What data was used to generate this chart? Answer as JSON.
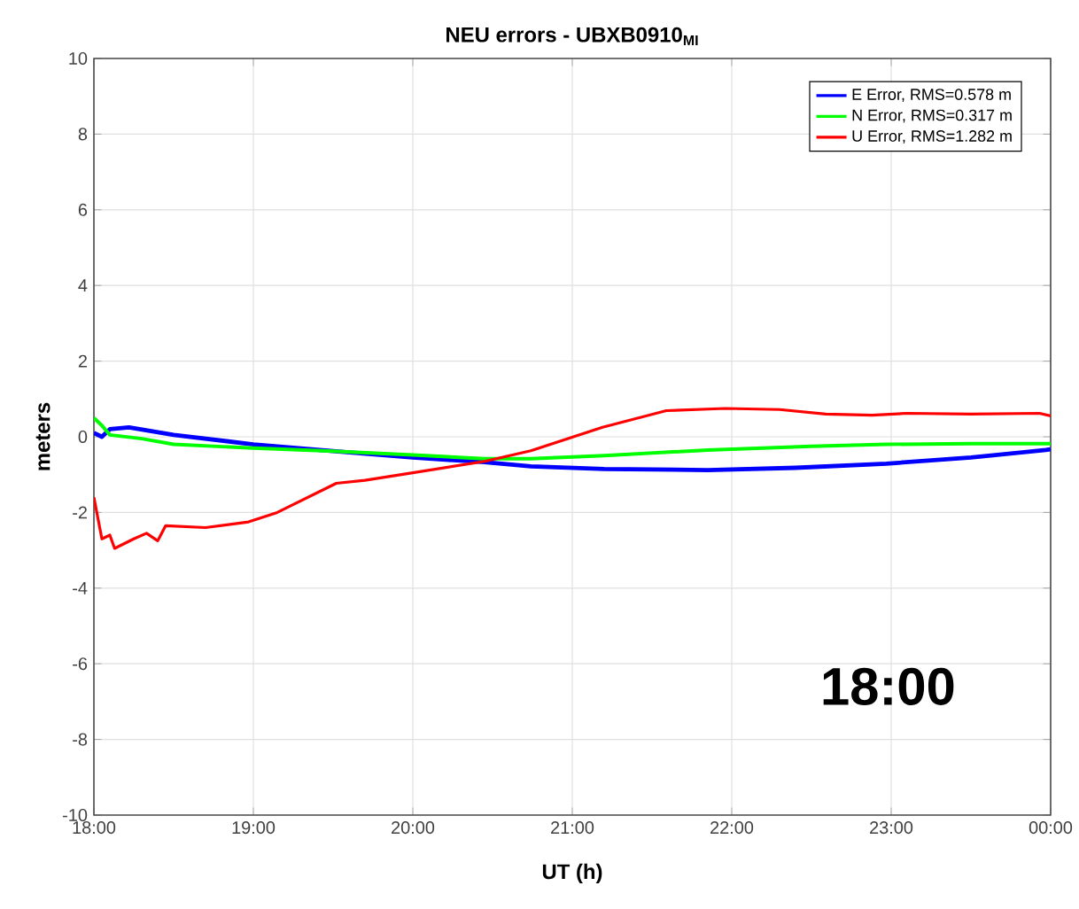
{
  "chart_data": {
    "type": "line",
    "title": "NEU errors - UBXB0910$_{MI}$",
    "xlabel": "UT (h)",
    "ylabel": "meters",
    "xlim": [
      18,
      24
    ],
    "xticks": [
      {
        "value": 18,
        "label": "18:00"
      },
      {
        "value": 19,
        "label": "19:00"
      },
      {
        "value": 20,
        "label": "20:00"
      },
      {
        "value": 21,
        "label": "21:00"
      },
      {
        "value": 22,
        "label": "22:00"
      },
      {
        "value": 23,
        "label": "23:00"
      },
      {
        "value": 24,
        "label": "00:00"
      }
    ],
    "ylim": [
      -10,
      10
    ],
    "yticks": [
      -10,
      -8,
      -6,
      -4,
      -2,
      0,
      2,
      4,
      6,
      8,
      10
    ],
    "grid": true,
    "legend": "top right",
    "marker": "none",
    "line_style": "solid",
    "annotations": [
      "18:00"
    ],
    "series": [
      {
        "name": "E Error, RMS=0.578 m",
        "color": "#0000ff",
        "x": [
          18.0,
          18.05,
          18.1,
          18.22,
          18.5,
          19.0,
          19.5,
          20.0,
          20.45,
          20.74,
          21.2,
          21.85,
          22.4,
          22.97,
          23.5,
          23.97,
          24.0
        ],
        "values": [
          0.1,
          0.0,
          0.2,
          0.25,
          0.05,
          -0.2,
          -0.38,
          -0.55,
          -0.67,
          -0.78,
          -0.85,
          -0.88,
          -0.82,
          -0.71,
          -0.55,
          -0.35,
          -0.33
        ]
      },
      {
        "name": "N Error, RMS=0.317 m",
        "color": "#00ff00",
        "x": [
          18.0,
          18.05,
          18.1,
          18.3,
          18.5,
          19.0,
          19.5,
          20.0,
          20.45,
          20.74,
          21.2,
          21.85,
          22.5,
          22.97,
          23.5,
          24.0
        ],
        "values": [
          0.5,
          0.3,
          0.05,
          -0.05,
          -0.2,
          -0.3,
          -0.38,
          -0.48,
          -0.58,
          -0.58,
          -0.5,
          -0.35,
          -0.25,
          -0.2,
          -0.18,
          -0.18
        ]
      },
      {
        "name": "U Error, RMS=1.282 m",
        "color": "#ff0000",
        "x": [
          18.0,
          18.05,
          18.1,
          18.13,
          18.25,
          18.33,
          18.4,
          18.45,
          18.7,
          18.97,
          19.15,
          19.52,
          19.7,
          20.0,
          20.45,
          20.74,
          21.19,
          21.59,
          21.96,
          22.3,
          22.59,
          22.88,
          23.1,
          23.5,
          23.93,
          24.0
        ],
        "values": [
          -1.6,
          -2.7,
          -2.6,
          -2.95,
          -2.7,
          -2.55,
          -2.75,
          -2.35,
          -2.4,
          -2.25,
          -2.0,
          -1.23,
          -1.15,
          -0.95,
          -0.65,
          -0.37,
          0.25,
          0.69,
          0.75,
          0.72,
          0.6,
          0.57,
          0.62,
          0.6,
          0.62,
          0.55
        ]
      }
    ]
  }
}
